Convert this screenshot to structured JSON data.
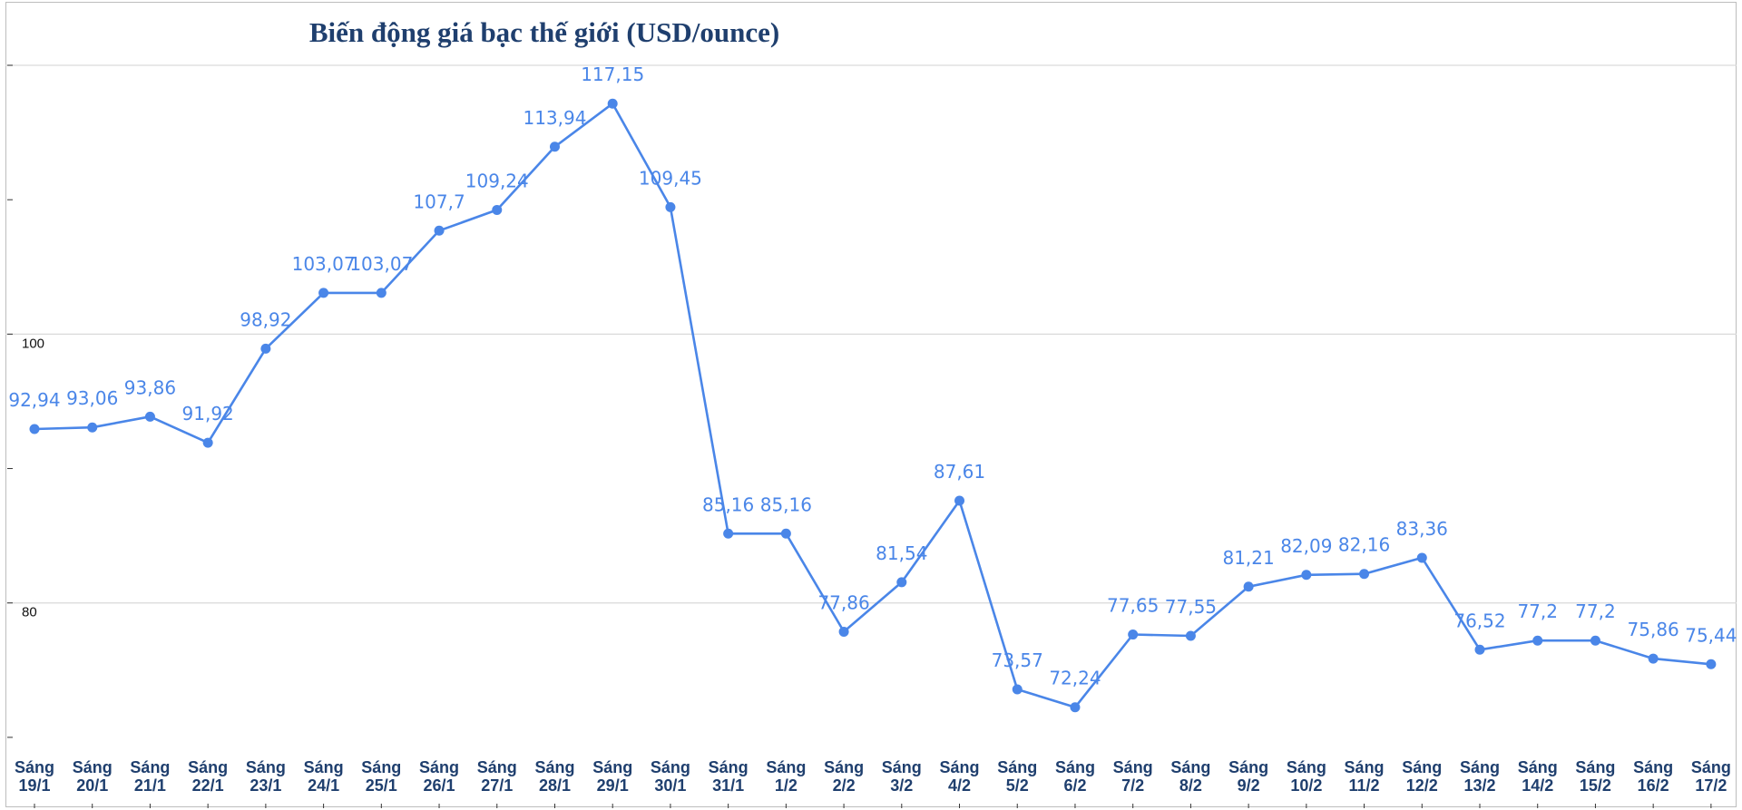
{
  "chart_data": {
    "type": "line",
    "title": "Biến động giá bạc thế giới (USD/ounce)",
    "xlabel": "",
    "ylabel": "",
    "ylim": [
      65,
      120
    ],
    "yticks": [
      80,
      100
    ],
    "grid": true,
    "categories": [
      [
        "Sáng",
        "19/1"
      ],
      [
        "Sáng",
        "20/1"
      ],
      [
        "Sáng",
        "21/1"
      ],
      [
        "Sáng",
        "22/1"
      ],
      [
        "Sáng",
        "23/1"
      ],
      [
        "Sáng",
        "24/1"
      ],
      [
        "Sáng",
        "25/1"
      ],
      [
        "Sáng",
        "26/1"
      ],
      [
        "Sáng",
        "27/1"
      ],
      [
        "Sáng",
        "28/1"
      ],
      [
        "Sáng",
        "29/1"
      ],
      [
        "Sáng",
        "30/1"
      ],
      [
        "Sáng",
        "31/1"
      ],
      [
        "Sáng",
        "1/2"
      ],
      [
        "Sáng",
        "2/2"
      ],
      [
        "Sáng",
        "3/2"
      ],
      [
        "Sáng",
        "4/2"
      ],
      [
        "Sáng",
        "5/2"
      ],
      [
        "Sáng",
        "6/2"
      ],
      [
        "Sáng",
        "7/2"
      ],
      [
        "Sáng",
        "8/2"
      ],
      [
        "Sáng",
        "9/2"
      ],
      [
        "Sáng",
        "10/2"
      ],
      [
        "Sáng",
        "11/2"
      ],
      [
        "Sáng",
        "12/2"
      ],
      [
        "Sáng",
        "13/2"
      ],
      [
        "Sáng",
        "14/2"
      ],
      [
        "Sáng",
        "15/2"
      ],
      [
        "Sáng",
        "16/2"
      ],
      [
        "Sáng",
        "17/2"
      ]
    ],
    "values": [
      92.94,
      93.06,
      93.86,
      91.92,
      98.92,
      103.07,
      103.07,
      107.7,
      109.24,
      113.94,
      117.15,
      109.45,
      85.16,
      85.16,
      77.86,
      81.54,
      87.61,
      73.57,
      72.24,
      77.65,
      77.55,
      81.21,
      82.09,
      82.16,
      83.36,
      76.52,
      77.2,
      77.2,
      75.86,
      75.44
    ],
    "labels": [
      "92,94",
      "93,06",
      "93,86",
      "91,92",
      "98,92",
      "103,07",
      "103,07",
      "107,7",
      "109,24",
      "113,94",
      "117,15",
      "109,45",
      "85,16",
      "85,16",
      "77,86",
      "81,54",
      "87,61",
      "73,57",
      "72,24",
      "77,65",
      "77,55",
      "81,21",
      "82,09",
      "82,16",
      "83,36",
      "76,52",
      "77,2",
      "77,2",
      "75,86",
      "75,44"
    ],
    "line_color": "#4a86e8"
  }
}
